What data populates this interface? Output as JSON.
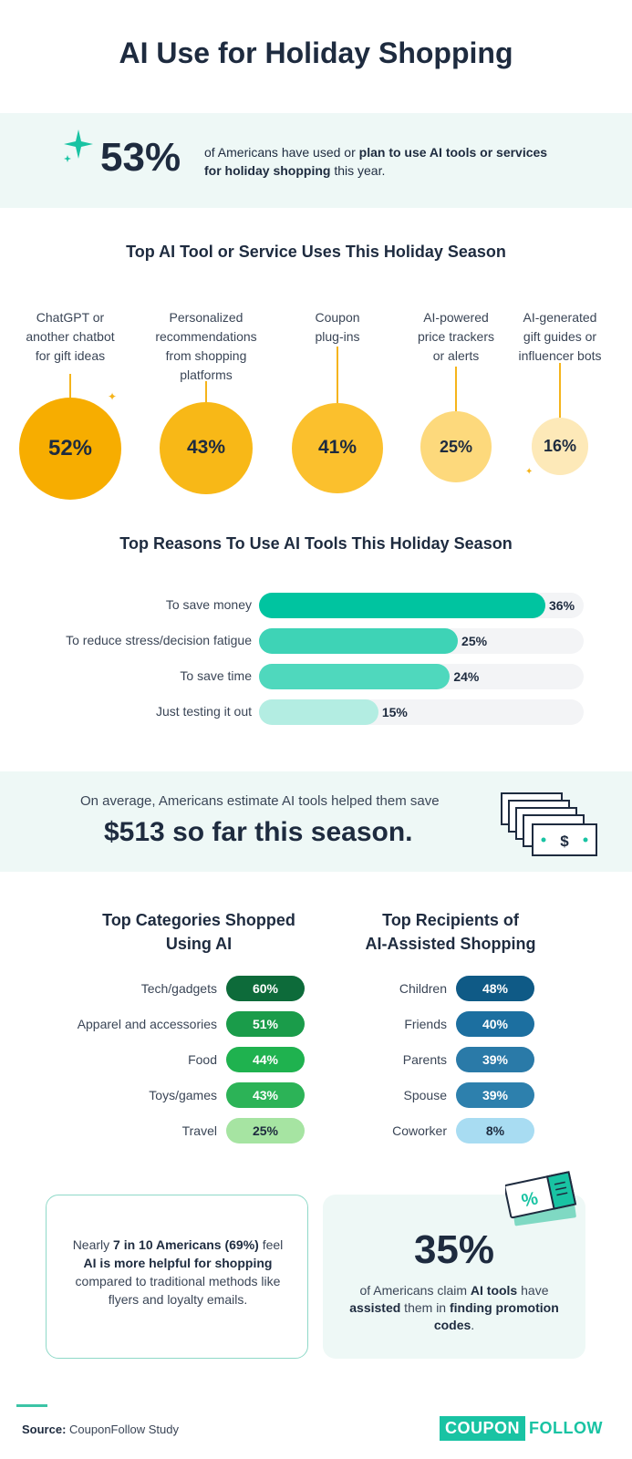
{
  "title": "AI Use for Holiday Shopping",
  "hero": {
    "stat": "53%",
    "text_pre": "of Americans have used or ",
    "text_bold": "plan to use AI tools or services for holiday shopping",
    "text_post": " this year."
  },
  "colors": {
    "dark": "#1e2b3f",
    "teal": "#19c3a3",
    "gold": "#f5b41b",
    "bg_mint": "#eef8f6"
  },
  "chart_data": [
    {
      "type": "bubble",
      "title": "Top AI Tool or Service Uses This Holiday Season",
      "categories": [
        "ChatGPT or another chatbot for gift ideas",
        "Personalized recommendations from shopping platforms",
        "Coupon plug-ins",
        "AI-powered price trackers or alerts",
        "AI-generated gift guides or influencer bots"
      ],
      "category_lines": [
        [
          "ChatGPT or",
          "another chatbot",
          "for gift ideas"
        ],
        [
          "Personalized",
          "recommendations",
          "from shopping",
          "platforms"
        ],
        [
          "Coupon",
          "plug-ins"
        ],
        [
          "AI-powered",
          "price trackers",
          "or alerts"
        ],
        [
          "AI-generated",
          "gift guides or",
          "influencer bots"
        ]
      ],
      "values": [
        52,
        43,
        41,
        25,
        16
      ],
      "value_labels": [
        "52%",
        "43%",
        "41%",
        "25%",
        "16%"
      ],
      "colors": [
        "#f7ad00",
        "#f8b817",
        "#fbc02d",
        "#fdd97c",
        "#fde9b8"
      ]
    },
    {
      "type": "bar",
      "orientation": "horizontal",
      "title": "Top Reasons To Use AI Tools This Holiday Season",
      "categories": [
        "To save money",
        "To reduce stress/decision fatigue",
        "To save time",
        "Just testing it out"
      ],
      "values": [
        36,
        25,
        24,
        15
      ],
      "value_labels": [
        "36%",
        "25%",
        "24%",
        "15%"
      ],
      "xlim": [
        0,
        36
      ],
      "colors": [
        "#00c4a0",
        "#3ed3b6",
        "#4fd8bd",
        "#b3ede2"
      ]
    },
    {
      "type": "table",
      "title": "Top Categories Shopped Using AI",
      "title_lines": [
        "Top Categories Shopped",
        "Using AI"
      ],
      "categories": [
        "Tech/gadgets",
        "Apparel and accessories",
        "Food",
        "Toys/games",
        "Travel"
      ],
      "values": [
        60,
        51,
        44,
        43,
        25
      ],
      "value_labels": [
        "60%",
        "51%",
        "44%",
        "43%",
        "25%"
      ],
      "colors": [
        "#0d6b3a",
        "#1a9c4a",
        "#1fb24f",
        "#2cb357",
        "#a6e4a2"
      ],
      "text_colors": [
        "#ffffff",
        "#ffffff",
        "#ffffff",
        "#ffffff",
        "#1e2b3f"
      ]
    },
    {
      "type": "table",
      "title": "Top Recipients of AI-Assisted Shopping",
      "title_lines": [
        "Top Recipients of",
        "AI-Assisted Shopping"
      ],
      "categories": [
        "Children",
        "Friends",
        "Parents",
        "Spouse",
        "Coworker"
      ],
      "values": [
        48,
        40,
        39,
        39,
        8
      ],
      "value_labels": [
        "48%",
        "40%",
        "39%",
        "39%",
        "8%"
      ],
      "colors": [
        "#0f5a86",
        "#1c6fa0",
        "#2a7aa8",
        "#2d80ad",
        "#a8dcf2"
      ],
      "text_colors": [
        "#ffffff",
        "#ffffff",
        "#ffffff",
        "#ffffff",
        "#1e2b3f"
      ]
    }
  ],
  "savings": {
    "small": "On average, Americans estimate AI tools helped them save",
    "big": "$513 so far this season.",
    "icon": "money-stack-icon",
    "bill_symbol": "$"
  },
  "box_left": {
    "t1": "Nearly ",
    "b1": "7 in 10 Americans (69%)",
    "t2": " feel ",
    "b2": "AI is more helpful for shopping",
    "t3": " compared to traditional methods like flyers and loyalty emails."
  },
  "box_right": {
    "stat": "35%",
    "t1": "of Americans claim ",
    "b1": "AI tools",
    "t2": " have ",
    "b2": "assisted",
    "t3": " them in ",
    "b3": "finding promotion codes",
    "t4": ".",
    "icon": "coupon-icon",
    "icon_symbol": "%"
  },
  "footer": {
    "source_label": "Source:",
    "source_text": " CouponFollow Study",
    "logo_a": "COUPON",
    "logo_b": "FOLLOW"
  }
}
